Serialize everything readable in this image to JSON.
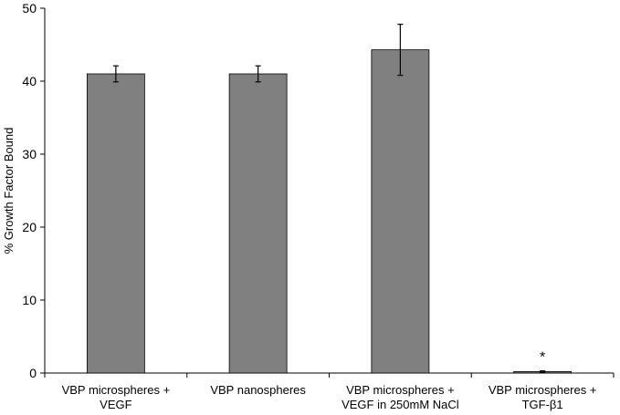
{
  "chart_data": {
    "type": "bar",
    "ylabel": "% Growth Factor Bound",
    "xlabel": "",
    "ylim": [
      0,
      50
    ],
    "yticks": [
      0,
      10,
      20,
      30,
      40,
      50
    ],
    "grid": false,
    "bar_color": "#808080",
    "categories": [
      [
        "VBP microspheres +",
        "VEGF"
      ],
      [
        "VBP nanospheres"
      ],
      [
        "VBP microspheres +",
        "VEGF in 250mM NaCl"
      ],
      [
        "VBP microspheres +",
        "TGF-β1"
      ]
    ],
    "values": [
      41.0,
      41.0,
      44.3,
      0.2
    ],
    "errors": [
      1.1,
      1.1,
      3.5,
      0.1
    ],
    "annotations": [
      {
        "category_index": 3,
        "text": "*"
      }
    ]
  }
}
